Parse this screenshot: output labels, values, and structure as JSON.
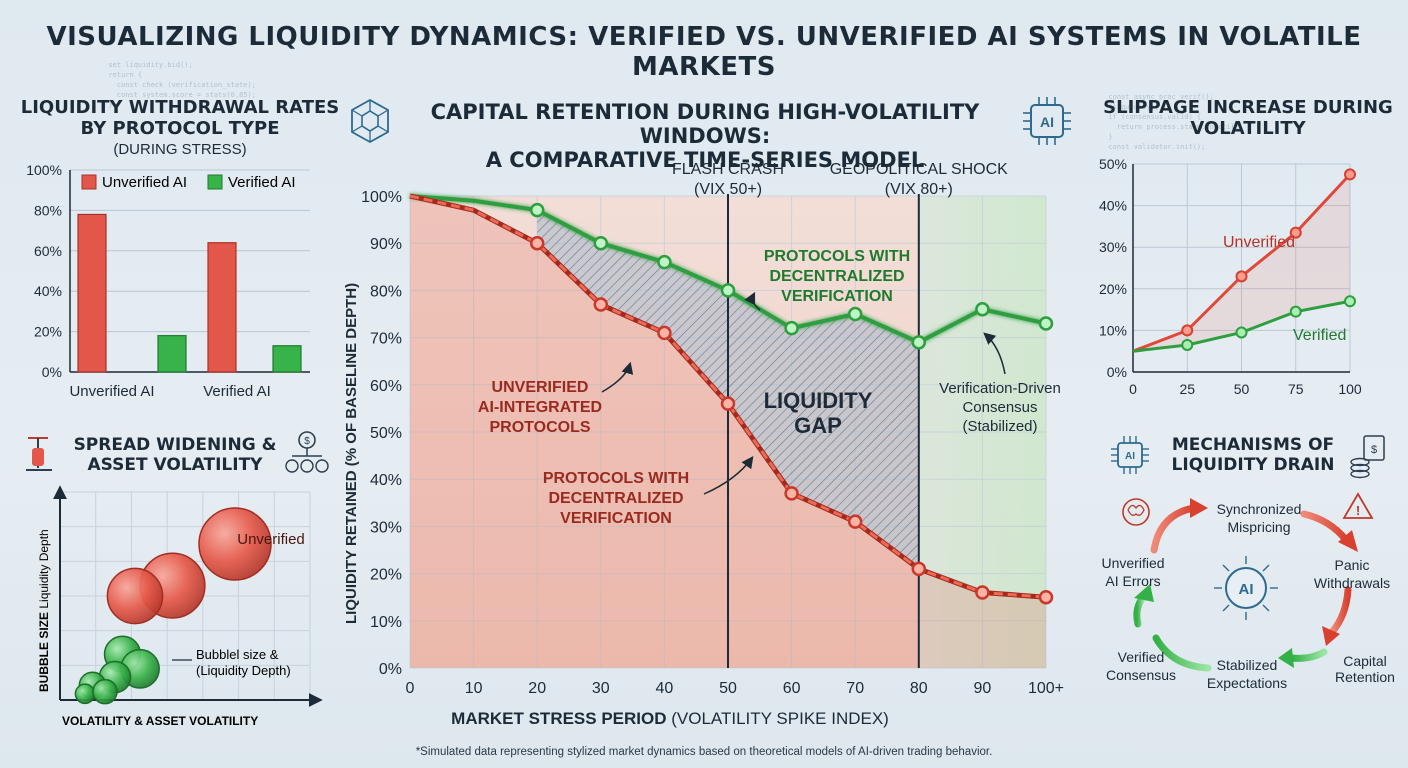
{
  "page": {
    "title": "VISUALIZING LIQUIDITY DYNAMICS: VERIFIED VS. UNVERIFIED AI SYSTEMS IN VOLATILE MARKETS",
    "footnote": "*Simulated data representing stylized market dynamics based on theoretical models of AI-driven trading behavior."
  },
  "colors": {
    "unverified": "#e3574a",
    "verified": "#37b34a",
    "text": "#1d2b38",
    "annotation_red": "#9a2a1f",
    "annotation_green": "#1f7a2e"
  },
  "chart_data": [
    {
      "id": "withdrawal",
      "type": "bar",
      "title": "LIQUIDITY WITHDRAWAL RATES BY PROTOCOL TYPE",
      "subtitle": "(DURING STRESS)",
      "categories": [
        "Unverified AI",
        "Verified AI"
      ],
      "series": [
        {
          "name": "Unverified AI",
          "values": [
            78,
            64
          ]
        },
        {
          "name": "Verified AI",
          "values": [
            18,
            13
          ]
        }
      ],
      "ylim": [
        0,
        100
      ],
      "yticks": [
        "0%",
        "20%",
        "40%",
        "60%",
        "80%",
        "100%"
      ]
    },
    {
      "id": "retention",
      "type": "line",
      "title_line1": "CAPITAL RETENTION DURING HIGH-VOLATILITY WINDOWS:",
      "title_line2": "A COMPARATIVE TIME-SERIES MODEL",
      "xlabel_bold": "MARKET STRESS PERIOD",
      "xlabel_rest": " (VOLATILITY SPIKE INDEX)",
      "ylabel": "LIQUIDITY RETAINED (% OF BASELINE DEPTH)",
      "xlim": [
        0,
        100
      ],
      "ylim": [
        0,
        100
      ],
      "x_ticks": [
        "0",
        "10",
        "20",
        "30",
        "40",
        "50",
        "60",
        "70",
        "80",
        "90",
        "100+"
      ],
      "y_ticks": [
        "0%",
        "10%",
        "20%",
        "30%",
        "40%",
        "50%",
        "60%",
        "70%",
        "80%",
        "90%",
        "100%"
      ],
      "series": [
        {
          "name": "Protocols with Decentralized Verification",
          "x": [
            0,
            10,
            20,
            30,
            40,
            50,
            60,
            70,
            80,
            90,
            100
          ],
          "y": [
            100,
            99,
            97,
            90,
            86,
            80,
            72,
            75,
            69,
            76,
            73
          ],
          "markers": [
            20,
            30,
            40,
            50,
            60,
            70,
            80,
            90,
            100
          ]
        },
        {
          "name": "Unverified AI-Integrated Protocols",
          "x": [
            0,
            10,
            20,
            30,
            40,
            50,
            60,
            70,
            80,
            90,
            100
          ],
          "y": [
            100,
            97,
            90,
            77,
            71,
            56,
            37,
            31,
            21,
            16,
            15
          ],
          "markers": [
            20,
            30,
            40,
            50,
            60,
            70,
            80,
            90,
            100
          ]
        }
      ],
      "events": [
        {
          "x": 50,
          "line1": "FLASH CRASH",
          "line2": "(VIX 50+)"
        },
        {
          "x": 80,
          "line1": "GEOPOLITICAL SHOCK",
          "line2": "(VIX 80+)"
        }
      ],
      "annotations": {
        "verified": [
          "PROTOCOLS WITH",
          "DECENTRALIZED",
          "VERIFICATION"
        ],
        "unverified": [
          "UNVERIFIED",
          "AI-INTEGRATED",
          "PROTOCOLS"
        ],
        "unverified_dup": [
          "PROTOCOLS WITH",
          "DECENTRALIZED",
          "VERIFICATION"
        ],
        "gap": [
          "LIQUIDITY",
          "GAP"
        ],
        "consensus": [
          "Verification-Driven",
          "Consensus",
          "(Stabilized)"
        ]
      }
    },
    {
      "id": "slippage",
      "type": "line",
      "title": "SLIPPAGE INCREASE DURING VOLATILITY",
      "x_ticks": [
        "0",
        "25",
        "50",
        "75",
        "100"
      ],
      "y_ticks": [
        "0%",
        "10%",
        "20%",
        "30%",
        "40%",
        "50%"
      ],
      "xlim": [
        0,
        100
      ],
      "ylim": [
        0,
        50
      ],
      "series": [
        {
          "name": "Unverified",
          "x": [
            0,
            25,
            50,
            75,
            100
          ],
          "y": [
            5,
            10,
            23,
            33.5,
            47.5
          ]
        },
        {
          "name": "Verified",
          "x": [
            0,
            25,
            50,
            75,
            100
          ],
          "y": [
            5,
            6.5,
            9.5,
            14.5,
            17
          ]
        }
      ]
    },
    {
      "id": "spread",
      "type": "scatter",
      "title": "SPREAD WIDENING & ASSET VOLATILITY",
      "xlabel": "VOLATILITY & ASSET VOLATILITY",
      "ylabel_bold": "BUBBLE SIZE",
      "ylabel_rest": " Liquidity Depth",
      "label_unverified": "Unverified",
      "legend_note": [
        "Bubblel size &",
        "(Liquidity Depth)"
      ],
      "bubbles": [
        {
          "group": "unverified",
          "x": 70,
          "y": 75,
          "size": 3.0
        },
        {
          "group": "unverified",
          "x": 45,
          "y": 55,
          "size": 2.7
        },
        {
          "group": "unverified",
          "x": 30,
          "y": 50,
          "size": 2.3
        },
        {
          "group": "verified",
          "x": 25,
          "y": 22,
          "size": 1.5
        },
        {
          "group": "verified",
          "x": 32,
          "y": 15,
          "size": 1.6
        },
        {
          "group": "verified",
          "x": 22,
          "y": 11,
          "size": 1.3
        },
        {
          "group": "verified",
          "x": 13,
          "y": 7,
          "size": 1.1
        },
        {
          "group": "verified",
          "x": 10,
          "y": 3,
          "size": 0.8
        },
        {
          "group": "verified",
          "x": 18,
          "y": 4,
          "size": 1.0
        }
      ]
    }
  ],
  "mechanisms": {
    "title": "MECHANISMS OF LIQUIDITY DRAIN",
    "center": "AI",
    "nodes": {
      "synchronized": [
        "Synchronized",
        "Mispricing"
      ],
      "panic": [
        "Panic",
        "Withdrawals"
      ],
      "capital": [
        "Capital",
        "Retention"
      ],
      "stabilized": [
        "Stabilized",
        "Expectations"
      ],
      "verified": [
        "Verified",
        "Consensus"
      ],
      "errors": [
        "Unverified",
        "AI Errors"
      ]
    }
  },
  "icons": {
    "network": "network-hex-icon",
    "ai_chip": "ai-chip-icon",
    "scale": "scale-icon",
    "money_tree": "money-tree-icon",
    "brain": "brain-icon",
    "warning": "warning-icon",
    "cash": "cash-coins-icon"
  }
}
